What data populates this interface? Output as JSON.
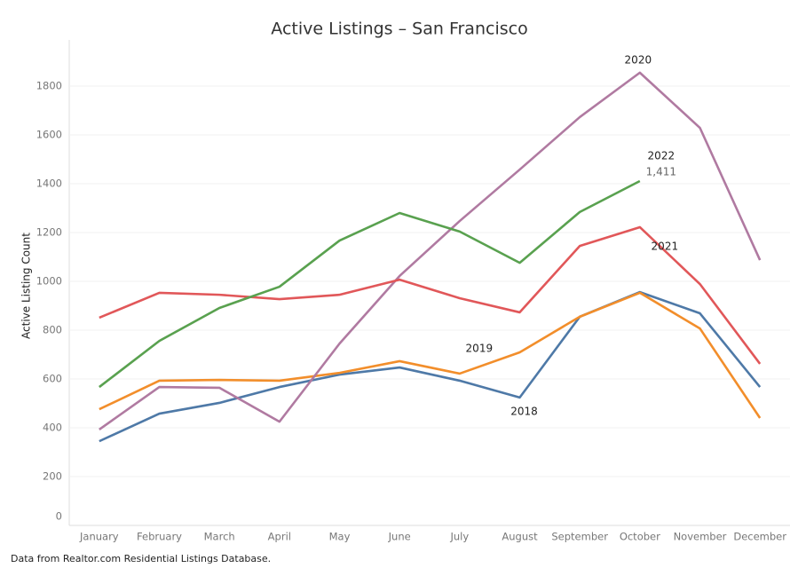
{
  "chart_data": {
    "type": "line",
    "title": "Active Listings – San Francisco",
    "y_label": "Active Listing Count",
    "note": "Data from Realtor.com Residential Listings Database.",
    "categories": [
      "January",
      "February",
      "March",
      "April",
      "May",
      "June",
      "July",
      "August",
      "September",
      "October",
      "November",
      "December"
    ],
    "series": [
      {
        "name": "2018",
        "color": "#4e79a7",
        "values": [
          345,
          458,
          502,
          567,
          618,
          647,
          593,
          524,
          855,
          956,
          869,
          567
        ]
      },
      {
        "name": "2019",
        "color": "#f28e2b",
        "values": [
          476,
          593,
          596,
          593,
          625,
          673,
          622,
          709,
          855,
          953,
          807,
          440
        ]
      },
      {
        "name": "2020",
        "color": "#b07aa1",
        "values": [
          393,
          567,
          564,
          425,
          745,
          1022,
          1247,
          1458,
          1673,
          1855,
          1629,
          1087
        ]
      },
      {
        "name": "2021",
        "color": "#e15759",
        "values": [
          851,
          953,
          945,
          927,
          945,
          1007,
          931,
          873,
          1145,
          1222,
          989,
          662
        ]
      },
      {
        "name": "2022",
        "color": "#59a14f",
        "values": [
          567,
          756,
          891,
          978,
          1167,
          1280,
          1204,
          1076,
          1284,
          1411,
          null,
          null
        ],
        "value_labels": [
          null,
          null,
          null,
          null,
          null,
          null,
          null,
          null,
          null,
          "1,411",
          null,
          null
        ]
      }
    ],
    "ylim": [
      0,
      1900
    ],
    "yticks": [
      0,
      200,
      400,
      600,
      800,
      1000,
      1200,
      1400,
      1600,
      1800
    ],
    "grid": true
  }
}
